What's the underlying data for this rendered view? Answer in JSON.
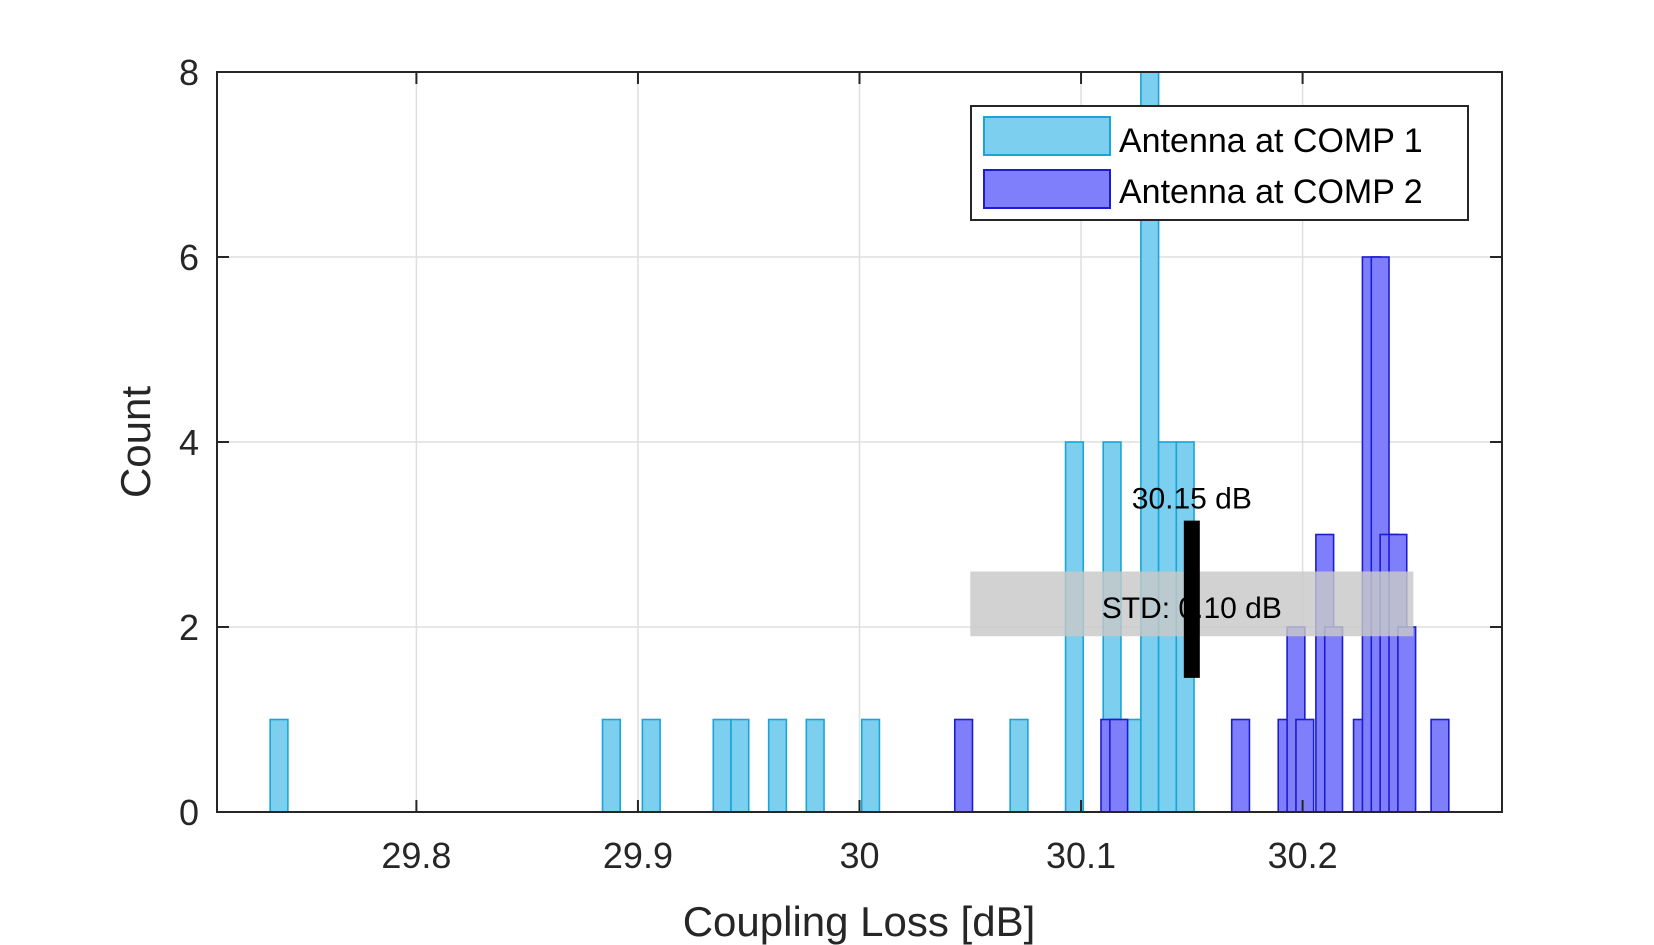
{
  "chart_data": {
    "type": "bar",
    "subtype": "histogram",
    "title": "",
    "xlabel": "Coupling Loss [dB]",
    "ylabel": "Count",
    "xlim": [
      29.71,
      30.29
    ],
    "ylim": [
      0,
      8
    ],
    "xticks": [
      29.8,
      29.9,
      30,
      30.1,
      30.2
    ],
    "xtick_labels": [
      "29.8",
      "29.9",
      "30",
      "30.1",
      "30.2"
    ],
    "yticks": [
      0,
      2,
      4,
      6,
      8
    ],
    "ytick_labels": [
      "0",
      "2",
      "4",
      "6",
      "8"
    ],
    "grid": true,
    "bin_width": 0.008,
    "legend": {
      "placement": "top-right"
    },
    "series": [
      {
        "name": "Antenna at COMP 1",
        "face_color": "#7ccfee",
        "edge_color": "#1aa5d6",
        "bins": [
          {
            "x": 29.738,
            "count": 1
          },
          {
            "x": 29.888,
            "count": 1
          },
          {
            "x": 29.906,
            "count": 1
          },
          {
            "x": 29.938,
            "count": 1
          },
          {
            "x": 29.946,
            "count": 1
          },
          {
            "x": 29.963,
            "count": 1
          },
          {
            "x": 29.98,
            "count": 1
          },
          {
            "x": 30.005,
            "count": 1
          },
          {
            "x": 30.072,
            "count": 1
          },
          {
            "x": 30.097,
            "count": 4
          },
          {
            "x": 30.114,
            "count": 4
          },
          {
            "x": 30.123,
            "count": 1
          },
          {
            "x": 30.131,
            "count": 8
          },
          {
            "x": 30.139,
            "count": 4
          },
          {
            "x": 30.147,
            "count": 4
          }
        ]
      },
      {
        "name": "Antenna at COMP 2",
        "face_color": "#7f7ffc",
        "edge_color": "#1c1cd0",
        "bins": [
          {
            "x": 30.047,
            "count": 1
          },
          {
            "x": 30.113,
            "count": 1
          },
          {
            "x": 30.117,
            "count": 1
          },
          {
            "x": 30.172,
            "count": 1
          },
          {
            "x": 30.193,
            "count": 1
          },
          {
            "x": 30.197,
            "count": 2
          },
          {
            "x": 30.201,
            "count": 1
          },
          {
            "x": 30.21,
            "count": 3
          },
          {
            "x": 30.214,
            "count": 2
          },
          {
            "x": 30.227,
            "count": 1
          },
          {
            "x": 30.231,
            "count": 6
          },
          {
            "x": 30.235,
            "count": 6
          },
          {
            "x": 30.239,
            "count": 3
          },
          {
            "x": 30.243,
            "count": 3
          },
          {
            "x": 30.247,
            "count": 2
          },
          {
            "x": 30.262,
            "count": 1
          }
        ]
      }
    ],
    "annotations": {
      "mean": {
        "label": "30.15 dB",
        "x": 30.15
      },
      "std": {
        "label": "STD: 0.10 dB",
        "value": 0.1
      }
    }
  }
}
